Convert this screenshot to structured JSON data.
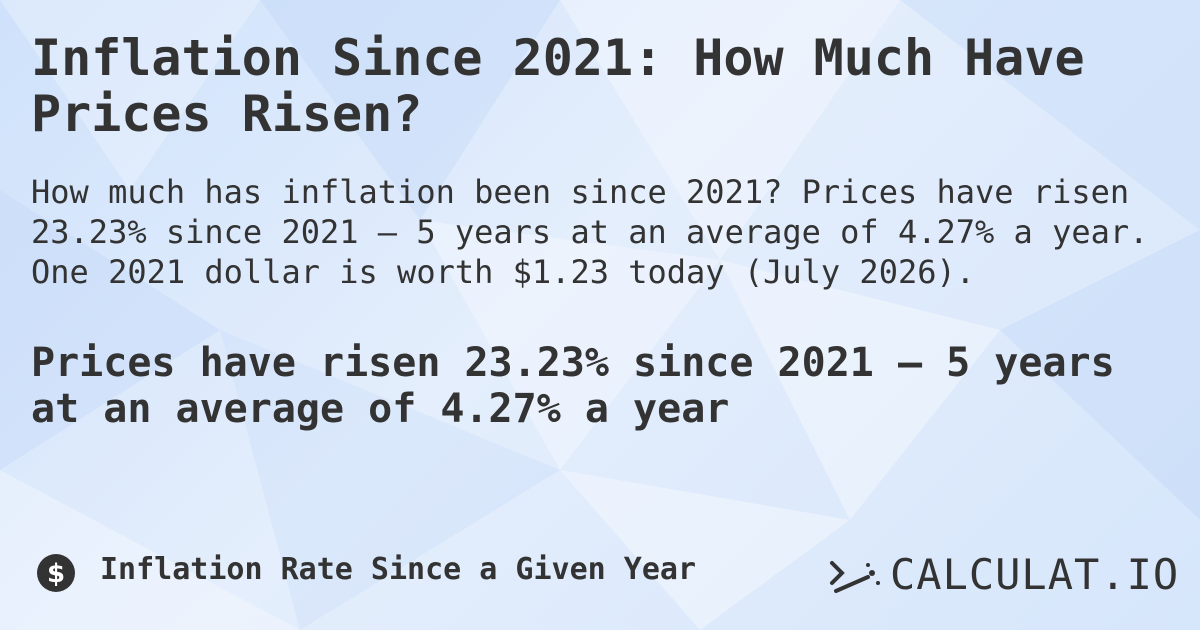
{
  "header": {
    "title": "Inflation Since 2021: How Much Have Prices Risen?"
  },
  "body": {
    "description": "How much has inflation been since 2021? Prices have risen 23.23% since 2021 — 5 years at an average of 4.27% a year. One 2021 dollar is worth $1.23 today (July 2026).",
    "highlight": "Prices have risen 23.23% since 2021 — 5 years at an average of 4.27% a year"
  },
  "footer": {
    "label": "Inflation Rate Since a Given Year",
    "brand": "CALCULAT.IO"
  }
}
